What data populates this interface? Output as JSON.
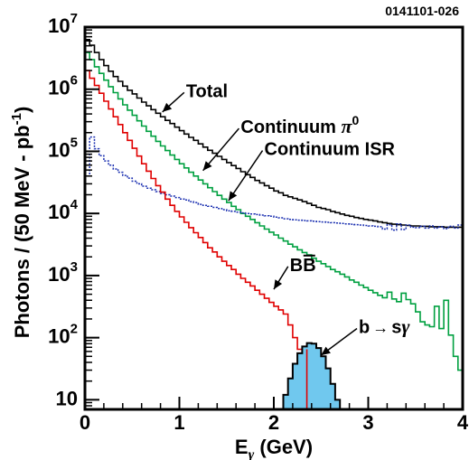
{
  "figure_id": "0141101-026",
  "chart_data": {
    "type": "line",
    "y_scale": "log",
    "xlim": [
      0,
      4
    ],
    "ylim": [
      7,
      10000000
    ],
    "xlabel_main": "E",
    "xlabel_sub": "γ",
    "xlabel_unit": " (GeV)",
    "ylabel_main": "Photons / (50 MeV - pb",
    "ylabel_sup": "-1",
    "ylabel_close": ")",
    "x_ticks": [
      {
        "value": 0,
        "label": "0"
      },
      {
        "value": 1,
        "label": "1"
      },
      {
        "value": 2,
        "label": "2"
      },
      {
        "value": 3,
        "label": "3"
      },
      {
        "value": 4,
        "label": "4"
      }
    ],
    "y_ticks": [
      {
        "value": 10,
        "base": "10",
        "exp": ""
      },
      {
        "value": 100,
        "base": "10",
        "exp": "2"
      },
      {
        "value": 1000,
        "base": "10",
        "exp": "3"
      },
      {
        "value": 10000,
        "base": "10",
        "exp": "4"
      },
      {
        "value": 100000,
        "base": "10",
        "exp": "5"
      },
      {
        "value": 1000000,
        "base": "10",
        "exp": "6"
      },
      {
        "value": 10000000,
        "base": "10",
        "exp": "7"
      }
    ],
    "grid": false,
    "series": [
      {
        "name": "Total",
        "color": "#000000",
        "style": "solid",
        "x": [
          0,
          0.05,
          0.1,
          0.15,
          0.2,
          0.25,
          0.3,
          0.35,
          0.4,
          0.45,
          0.5,
          0.55,
          0.6,
          0.65,
          0.7,
          0.75,
          0.8,
          0.85,
          0.9,
          0.95,
          1.0,
          1.05,
          1.1,
          1.15,
          1.2,
          1.25,
          1.3,
          1.35,
          1.4,
          1.45,
          1.5,
          1.55,
          1.6,
          1.65,
          1.7,
          1.75,
          1.8,
          1.85,
          1.9,
          1.95,
          2.0,
          2.05,
          2.1,
          2.15,
          2.2,
          2.25,
          2.3,
          2.35,
          2.4,
          2.45,
          2.5,
          2.55,
          2.6,
          2.65,
          2.7,
          2.75,
          2.8,
          2.85,
          2.9,
          2.95,
          3.0,
          3.05,
          3.1,
          3.15,
          3.2,
          3.25,
          3.3,
          3.35,
          3.4,
          3.45,
          3.5,
          3.55,
          3.6,
          3.65,
          3.7,
          3.75,
          3.8,
          3.85,
          3.9,
          3.95
        ],
        "values": [
          6300000,
          5100000,
          3900000,
          3000000,
          2400000,
          1950000,
          1600000,
          1340000,
          1120000,
          960000,
          840000,
          720000,
          620000,
          540000,
          470000,
          410000,
          360000,
          315000,
          280000,
          245000,
          215000,
          190000,
          168000,
          150000,
          132000,
          117000,
          104000,
          93000,
          83000,
          74000,
          66000,
          59000,
          53000,
          47000,
          42000,
          38000,
          34000,
          31000,
          28000,
          25500,
          23000,
          21500,
          19500,
          18500,
          17500,
          16500,
          15500,
          14500,
          13500,
          12500,
          12000,
          11500,
          10800,
          10300,
          9800,
          9300,
          9000,
          8600,
          8300,
          8000,
          7800,
          7600,
          7300,
          7100,
          6900,
          6700,
          6600,
          6500,
          6400,
          6300,
          6300,
          6200,
          6200,
          6100,
          6100,
          6100,
          6000,
          6000,
          6000,
          6000
        ]
      },
      {
        "name": "Continuum π0",
        "color": "#00a040",
        "style": "solid",
        "x": [
          0,
          0.05,
          0.1,
          0.15,
          0.2,
          0.25,
          0.3,
          0.35,
          0.4,
          0.45,
          0.5,
          0.55,
          0.6,
          0.65,
          0.7,
          0.75,
          0.8,
          0.85,
          0.9,
          0.95,
          1.0,
          1.05,
          1.1,
          1.15,
          1.2,
          1.25,
          1.3,
          1.35,
          1.4,
          1.45,
          1.5,
          1.55,
          1.6,
          1.65,
          1.7,
          1.75,
          1.8,
          1.85,
          1.9,
          1.95,
          2.0,
          2.05,
          2.1,
          2.15,
          2.2,
          2.25,
          2.3,
          2.35,
          2.4,
          2.45,
          2.5,
          2.55,
          2.6,
          2.65,
          2.7,
          2.75,
          2.8,
          2.85,
          2.9,
          2.95,
          3.0,
          3.05,
          3.1,
          3.15,
          3.2,
          3.25,
          3.3,
          3.35,
          3.4,
          3.45,
          3.5,
          3.55,
          3.6,
          3.65,
          3.7,
          3.75,
          3.8,
          3.85,
          3.9,
          3.95
        ],
        "values": [
          3900000,
          3000000,
          2300000,
          1800000,
          1400000,
          1100000,
          880000,
          700000,
          560000,
          460000,
          380000,
          310000,
          255000,
          210000,
          175000,
          145000,
          122000,
          103000,
          87000,
          74000,
          63000,
          54000,
          46000,
          40000,
          34500,
          30000,
          26000,
          22500,
          19500,
          17000,
          15000,
          13000,
          11500,
          10000,
          9000,
          8000,
          7100,
          6300,
          5600,
          5000,
          4500,
          4000,
          3600,
          3200,
          2900,
          2600,
          2350,
          2150,
          1900,
          1700,
          1550,
          1400,
          1250,
          1150,
          1050,
          950,
          850,
          780,
          700,
          640,
          580,
          530,
          480,
          440,
          540,
          420,
          380,
          520,
          410,
          350,
          260,
          180,
          160,
          150,
          320,
          140,
          400,
          110,
          50,
          30
        ]
      },
      {
        "name": "Continuum ISR",
        "color": "#1a2fb0",
        "style": "dotted",
        "x": [
          0,
          0.05,
          0.1,
          0.15,
          0.2,
          0.25,
          0.3,
          0.35,
          0.4,
          0.45,
          0.5,
          0.55,
          0.6,
          0.65,
          0.7,
          0.75,
          0.8,
          0.85,
          0.9,
          0.95,
          1.0,
          1.05,
          1.1,
          1.15,
          1.2,
          1.25,
          1.3,
          1.35,
          1.4,
          1.45,
          1.5,
          1.55,
          1.6,
          1.65,
          1.7,
          1.75,
          1.8,
          1.85,
          1.9,
          1.95,
          2.0,
          2.05,
          2.1,
          2.15,
          2.2,
          2.25,
          2.3,
          2.35,
          2.4,
          2.45,
          2.5,
          2.55,
          2.6,
          2.65,
          2.7,
          2.75,
          2.8,
          2.85,
          2.9,
          2.95,
          3.0,
          3.05,
          3.1,
          3.15,
          3.2,
          3.25,
          3.3,
          3.35,
          3.4,
          3.45,
          3.5,
          3.55,
          3.6,
          3.65,
          3.7,
          3.75,
          3.8,
          3.85,
          3.9,
          3.95
        ],
        "values": [
          40000,
          170000,
          110000,
          85000,
          70000,
          60000,
          52000,
          46000,
          41000,
          37000,
          33000,
          30000,
          27500,
          25500,
          24000,
          22500,
          21000,
          20000,
          19000,
          18000,
          17000,
          16500,
          15500,
          15000,
          14000,
          13500,
          13000,
          12500,
          12000,
          11500,
          11000,
          10800,
          10500,
          10200,
          10000,
          9800,
          9600,
          9400,
          9200,
          9000,
          8700,
          8500,
          8200,
          8000,
          7900,
          7800,
          7700,
          7600,
          7500,
          7400,
          7300,
          7200,
          7100,
          7000,
          6900,
          6800,
          6700,
          6600,
          6500,
          6400,
          6300,
          6200,
          6100,
          5600,
          6600,
          5400,
          6800,
          5500,
          6500,
          6000,
          5900,
          6200,
          5800,
          6300,
          5800,
          6100,
          5700,
          6200,
          5800,
          6500
        ]
      },
      {
        "name": "BB̄",
        "color": "#e00000",
        "style": "solid",
        "x": [
          0,
          0.05,
          0.1,
          0.15,
          0.2,
          0.25,
          0.3,
          0.35,
          0.4,
          0.45,
          0.5,
          0.55,
          0.6,
          0.65,
          0.7,
          0.75,
          0.8,
          0.85,
          0.9,
          0.95,
          1.0,
          1.05,
          1.1,
          1.15,
          1.2,
          1.25,
          1.3,
          1.35,
          1.4,
          1.45,
          1.5,
          1.55,
          1.6,
          1.65,
          1.7,
          1.75,
          1.8,
          1.85,
          1.9,
          1.95,
          2.0,
          2.05,
          2.1,
          2.15,
          2.2,
          2.25,
          2.3,
          2.35
        ],
        "values": [
          2000000,
          1500000,
          1150000,
          860000,
          640000,
          480000,
          360000,
          270000,
          200000,
          150000,
          112000,
          84000,
          63000,
          48000,
          36500,
          28000,
          22000,
          17000,
          13500,
          10800,
          8800,
          7200,
          5900,
          4900,
          4100,
          3400,
          2800,
          2400,
          2000,
          1700,
          1450,
          1250,
          1050,
          900,
          780,
          680,
          580,
          500,
          430,
          370,
          320,
          280,
          240,
          160,
          100,
          65,
          65,
          65
        ]
      }
    ],
    "signal": {
      "name": "b → sγ",
      "fill": "#70c8ee",
      "edges": [
        2.1,
        2.15,
        2.2,
        2.25,
        2.3,
        2.35,
        2.4,
        2.45,
        2.5,
        2.55,
        2.6,
        2.65,
        2.7
      ],
      "values": [
        12,
        22,
        38,
        56,
        72,
        82,
        80,
        68,
        50,
        32,
        18,
        10
      ]
    },
    "annotations": [
      {
        "id": "total",
        "label": "Total",
        "text_x": 1.07,
        "text_y": 950000,
        "target_x": 0.82,
        "target_y": 430000
      },
      {
        "id": "continuum-pi0",
        "text_x": 1.65,
        "text_y": 250000,
        "target_x": 1.25,
        "target_y": 49000
      },
      {
        "id": "continuum-isr",
        "label": "Continuum ISR",
        "text_x": 1.9,
        "text_y": 110000,
        "target_x": 1.52,
        "target_y": 16000
      },
      {
        "id": "bbbar",
        "text_x": 2.17,
        "text_y": 1500,
        "target_x": 2.0,
        "target_y": 600
      },
      {
        "id": "bsgamma",
        "text_x": 2.9,
        "text_y": 150,
        "target_x": 2.5,
        "target_y": 52
      }
    ],
    "label_continuum": "Continuum ",
    "label_pi": "π",
    "label_pi_sup": "0",
    "label_bb": "BB",
    "label_b_sgamma": "b",
    "label_arrow": "→",
    "label_s": "s",
    "label_gamma": "γ"
  }
}
